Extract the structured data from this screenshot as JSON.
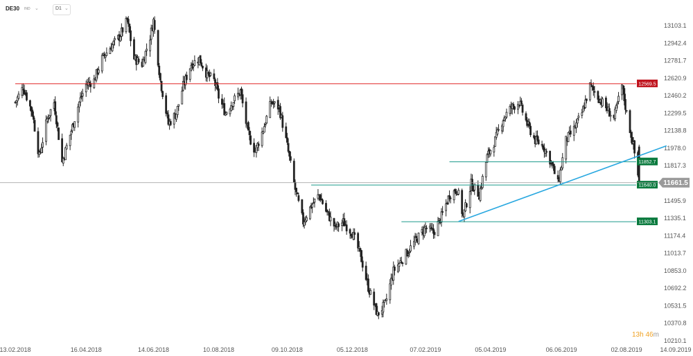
{
  "header": {
    "symbol": "DE30",
    "exchange": "IND",
    "timeframe": "D1"
  },
  "countdown": {
    "hours": "13h",
    "minutes": "46",
    "unit": "m"
  },
  "colors": {
    "candle": "#222222",
    "resistance": "#e02020",
    "support": "#1a9a8a",
    "trendline": "#29a8e0",
    "current_price_line": "#999999",
    "red_tag": "#c0141e",
    "green_tag": "#0a7a3e",
    "grey_tag": "#9a9a9a",
    "countdown": "#f0a020"
  },
  "chart_data": {
    "type": "candlestick",
    "title": "",
    "xlabel": "",
    "ylabel": "",
    "ylim": [
      10200,
      13200
    ],
    "x_tick_labels": [
      "13.02.2018",
      "16.04.2018",
      "14.06.2018",
      "10.08.2018",
      "09.10.2018",
      "05.12.2018",
      "07.02.2019",
      "05.04.2019",
      "06.06.2019",
      "02.08.2019",
      "14.09.2019"
    ],
    "y_ticks": [
      13103.1,
      12942.4,
      12781.7,
      12620.9,
      12460.2,
      12299.5,
      12138.8,
      11978.0,
      11817.3,
      11495.9,
      11335.1,
      11174.4,
      11013.7,
      10853.0,
      10692.2,
      10531.5,
      10370.8,
      10210.1
    ],
    "levels": [
      {
        "value": 12569.5,
        "label": "12569.5",
        "kind": "resistance"
      },
      {
        "value": 11852.7,
        "label": "11852.7",
        "kind": "support"
      },
      {
        "value": 11640.0,
        "label": "11640.0",
        "kind": "support"
      },
      {
        "value": 11303.1,
        "label": "11303.1",
        "kind": "support"
      }
    ],
    "current_price": {
      "value": 11661.5,
      "label": "11661.5"
    },
    "trendline": {
      "from": {
        "date": "2019-03-08",
        "value": 11305
      },
      "to": {
        "date": "2019-09-06",
        "value": 12000
      }
    },
    "close_path": [
      [
        "2018-02-13",
        12400
      ],
      [
        "2018-02-20",
        12540
      ],
      [
        "2018-02-28",
        12300
      ],
      [
        "2018-03-06",
        11900
      ],
      [
        "2018-03-13",
        12250
      ],
      [
        "2018-03-19",
        12400
      ],
      [
        "2018-03-26",
        11850
      ],
      [
        "2018-04-02",
        12100
      ],
      [
        "2018-04-10",
        12400
      ],
      [
        "2018-04-16",
        12560
      ],
      [
        "2018-04-23",
        12600
      ],
      [
        "2018-04-30",
        12800
      ],
      [
        "2018-05-07",
        12900
      ],
      [
        "2018-05-15",
        13000
      ],
      [
        "2018-05-22",
        13150
      ],
      [
        "2018-05-28",
        12800
      ],
      [
        "2018-06-04",
        12750
      ],
      [
        "2018-06-11",
        13000
      ],
      [
        "2018-06-14",
        13150
      ],
      [
        "2018-06-20",
        12600
      ],
      [
        "2018-06-27",
        12200
      ],
      [
        "2018-07-04",
        12300
      ],
      [
        "2018-07-10",
        12550
      ],
      [
        "2018-07-17",
        12750
      ],
      [
        "2018-07-24",
        12800
      ],
      [
        "2018-07-31",
        12650
      ],
      [
        "2018-08-06",
        12600
      ],
      [
        "2018-08-10",
        12450
      ],
      [
        "2018-08-16",
        12300
      ],
      [
        "2018-08-22",
        12400
      ],
      [
        "2018-08-29",
        12500
      ],
      [
        "2018-09-05",
        12100
      ],
      [
        "2018-09-11",
        11950
      ],
      [
        "2018-09-18",
        12150
      ],
      [
        "2018-09-25",
        12400
      ],
      [
        "2018-10-02",
        12350
      ],
      [
        "2018-10-09",
        12000
      ],
      [
        "2018-10-16",
        11600
      ],
      [
        "2018-10-23",
        11300
      ],
      [
        "2018-10-30",
        11450
      ],
      [
        "2018-11-06",
        11550
      ],
      [
        "2018-11-12",
        11400
      ],
      [
        "2018-11-20",
        11250
      ],
      [
        "2018-11-27",
        11300
      ],
      [
        "2018-12-05",
        11200
      ],
      [
        "2018-12-12",
        11000
      ],
      [
        "2018-12-19",
        10700
      ],
      [
        "2018-12-27",
        10450
      ],
      [
        "2019-01-03",
        10550
      ],
      [
        "2019-01-10",
        10850
      ],
      [
        "2019-01-17",
        10950
      ],
      [
        "2019-01-24",
        11050
      ],
      [
        "2019-01-31",
        11150
      ],
      [
        "2019-02-07",
        11250
      ],
      [
        "2019-02-14",
        11200
      ],
      [
        "2019-02-21",
        11350
      ],
      [
        "2019-02-28",
        11550
      ],
      [
        "2019-03-07",
        11600
      ],
      [
        "2019-03-12",
        11350
      ],
      [
        "2019-03-19",
        11650
      ],
      [
        "2019-03-26",
        11550
      ],
      [
        "2019-04-02",
        11900
      ],
      [
        "2019-04-09",
        12050
      ],
      [
        "2019-04-16",
        12250
      ],
      [
        "2019-04-23",
        12350
      ],
      [
        "2019-04-30",
        12400
      ],
      [
        "2019-05-07",
        12200
      ],
      [
        "2019-05-14",
        12050
      ],
      [
        "2019-05-21",
        12000
      ],
      [
        "2019-05-28",
        11850
      ],
      [
        "2019-06-03",
        11650
      ],
      [
        "2019-06-10",
        12050
      ],
      [
        "2019-06-17",
        12150
      ],
      [
        "2019-06-24",
        12300
      ],
      [
        "2019-07-01",
        12550
      ],
      [
        "2019-07-08",
        12450
      ],
      [
        "2019-07-15",
        12350
      ],
      [
        "2019-07-22",
        12250
      ],
      [
        "2019-07-29",
        12550
      ],
      [
        "2019-08-02",
        12300
      ],
      [
        "2019-08-08",
        12000
      ],
      [
        "2019-08-13",
        11661.5
      ]
    ]
  }
}
